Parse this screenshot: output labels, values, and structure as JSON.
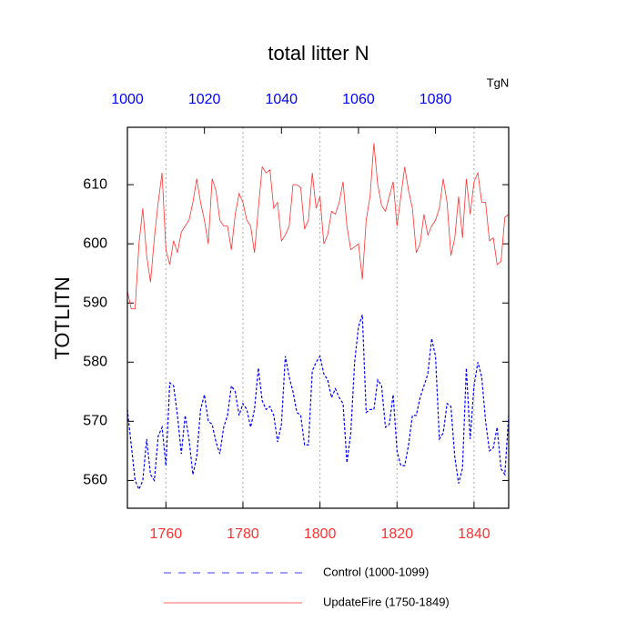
{
  "chart_data": {
    "type": "line",
    "title": "total litter N",
    "y_label": "TOTLITN",
    "units_label": "TgN",
    "xlim": [
      1750,
      1849
    ],
    "xticks": [
      1760,
      1780,
      1800,
      1820,
      1840
    ],
    "x2lim": [
      1000,
      1099
    ],
    "x2ticks": [
      1000,
      1020,
      1040,
      1060,
      1080
    ],
    "ylim": [
      555.3,
      619.7
    ],
    "yticks": [
      560,
      570,
      580,
      590,
      600,
      610
    ],
    "grid": true,
    "series": [
      {
        "name": "Control (1000-1099)",
        "color": "#0000ff",
        "dashed": true,
        "axis": "x2",
        "x": [
          1000,
          1001,
          1002,
          1003,
          1004,
          1005,
          1006,
          1007,
          1008,
          1009,
          1010,
          1011,
          1012,
          1013,
          1014,
          1015,
          1016,
          1017,
          1018,
          1019,
          1020,
          1021,
          1022,
          1023,
          1024,
          1025,
          1026,
          1027,
          1028,
          1029,
          1030,
          1031,
          1032,
          1033,
          1034,
          1035,
          1036,
          1037,
          1038,
          1039,
          1040,
          1041,
          1042,
          1043,
          1044,
          1045,
          1046,
          1047,
          1048,
          1049,
          1050,
          1051,
          1052,
          1053,
          1054,
          1055,
          1056,
          1057,
          1058,
          1059,
          1060,
          1061,
          1062,
          1063,
          1064,
          1065,
          1066,
          1067,
          1068,
          1069,
          1070,
          1071,
          1072,
          1073,
          1074,
          1075,
          1076,
          1077,
          1078,
          1079,
          1080,
          1081,
          1082,
          1083,
          1084,
          1085,
          1086,
          1087,
          1088,
          1089,
          1090,
          1091,
          1092,
          1093,
          1094,
          1095,
          1096,
          1097,
          1098,
          1099
        ],
        "values": [
          572,
          566,
          560,
          558.5,
          560,
          567,
          561,
          560,
          567.5,
          569,
          562.5,
          576.5,
          576,
          571,
          564.5,
          571,
          567,
          561,
          564,
          572,
          574.5,
          570,
          569.5,
          566.5,
          564.5,
          569,
          571,
          576,
          575,
          571,
          573,
          572,
          569,
          572,
          579,
          573.5,
          572,
          572.5,
          571,
          566.5,
          569.5,
          581,
          577.5,
          575,
          571.5,
          571,
          566,
          566,
          578.5,
          580,
          581,
          578,
          577,
          574,
          575.5,
          574,
          573,
          563,
          568,
          580,
          586,
          588,
          571.5,
          572,
          572,
          577,
          576,
          569,
          569.5,
          574.5,
          565,
          562.5,
          562.5,
          566,
          571,
          571,
          574,
          576,
          578,
          584,
          581,
          567,
          568,
          573,
          572.5,
          564,
          559.5,
          562,
          579,
          567,
          576,
          580,
          577.5,
          570,
          565,
          565.5,
          569,
          562,
          561,
          571
        ]
      },
      {
        "name": "UpdateFire (1750-1849)",
        "color": "#ff3030",
        "dashed": false,
        "axis": "x",
        "x": [
          1750,
          1751,
          1752,
          1753,
          1754,
          1755,
          1756,
          1757,
          1758,
          1759,
          1760,
          1761,
          1762,
          1763,
          1764,
          1765,
          1766,
          1767,
          1768,
          1769,
          1770,
          1771,
          1772,
          1773,
          1774,
          1775,
          1776,
          1777,
          1778,
          1779,
          1780,
          1781,
          1782,
          1783,
          1784,
          1785,
          1786,
          1787,
          1788,
          1789,
          1790,
          1791,
          1792,
          1793,
          1794,
          1795,
          1796,
          1797,
          1798,
          1799,
          1800,
          1801,
          1802,
          1803,
          1804,
          1805,
          1806,
          1807,
          1808,
          1809,
          1810,
          1811,
          1812,
          1813,
          1814,
          1815,
          1816,
          1817,
          1818,
          1819,
          1820,
          1821,
          1822,
          1823,
          1824,
          1825,
          1826,
          1827,
          1828,
          1829,
          1830,
          1831,
          1832,
          1833,
          1834,
          1835,
          1836,
          1837,
          1838,
          1839,
          1840,
          1841,
          1842,
          1843,
          1844,
          1845,
          1846,
          1847,
          1848,
          1849
        ],
        "values": [
          592,
          589,
          589,
          600,
          606,
          598,
          593.5,
          601,
          607,
          612,
          599,
          596.5,
          600.5,
          598.5,
          602,
          603,
          604,
          607,
          611,
          607,
          604,
          600,
          611,
          609,
          604,
          603,
          603,
          599,
          605,
          608.5,
          607,
          604,
          603,
          598.5,
          606,
          613,
          612,
          612.5,
          606,
          607,
          600.5,
          601.5,
          603,
          610,
          610,
          609.5,
          602.5,
          604,
          612,
          606,
          608,
          600,
          601.5,
          605.5,
          605,
          607,
          610.5,
          603,
          599,
          599.5,
          600,
          594,
          604,
          608,
          617,
          610,
          606.5,
          605.5,
          608,
          610.5,
          603,
          608,
          613,
          609,
          606,
          598.5,
          600,
          605,
          601.5,
          603,
          604,
          606,
          611,
          607,
          598,
          601,
          608,
          601,
          611,
          605,
          610.5,
          612,
          607,
          607,
          600.5,
          601,
          596.5,
          597,
          604.5,
          605
        ]
      }
    ]
  }
}
